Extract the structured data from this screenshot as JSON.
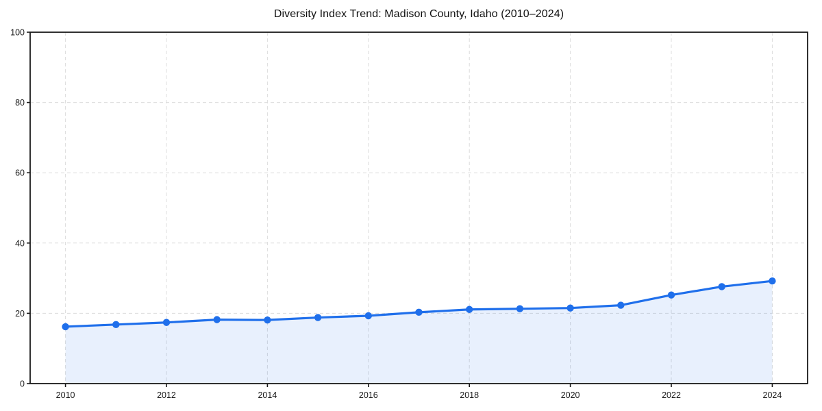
{
  "chart_data": {
    "type": "area",
    "title": "Diversity Index Trend: Madison County, Idaho (2010–2024)",
    "x": [
      2010,
      2011,
      2012,
      2013,
      2014,
      2015,
      2016,
      2017,
      2018,
      2019,
      2020,
      2021,
      2022,
      2023,
      2024
    ],
    "series": [
      {
        "name": "Diversity Index",
        "values": [
          16.2,
          16.8,
          17.4,
          18.2,
          18.1,
          18.8,
          19.3,
          20.3,
          21.1,
          21.3,
          21.5,
          22.3,
          25.2,
          27.6,
          29.2
        ]
      }
    ],
    "xlabel": "",
    "ylabel": "",
    "xticks": [
      2010,
      2012,
      2014,
      2016,
      2018,
      2020,
      2022,
      2024
    ],
    "yticks": [
      0,
      20,
      40,
      60,
      80,
      100
    ],
    "xlim": [
      2009.3,
      2024.7
    ],
    "ylim": [
      0,
      100
    ],
    "grid": true,
    "grid_style": "dashed",
    "legend": "none",
    "colors": {
      "line": "#1f6feb",
      "marker": "#1f6feb",
      "fill": "#1f6feb",
      "fill_opacity": 0.1,
      "grid": "#dcdcdc",
      "axis": "#1a1a1a",
      "tick_text": "#1a1a1a",
      "background": "#ffffff"
    }
  }
}
